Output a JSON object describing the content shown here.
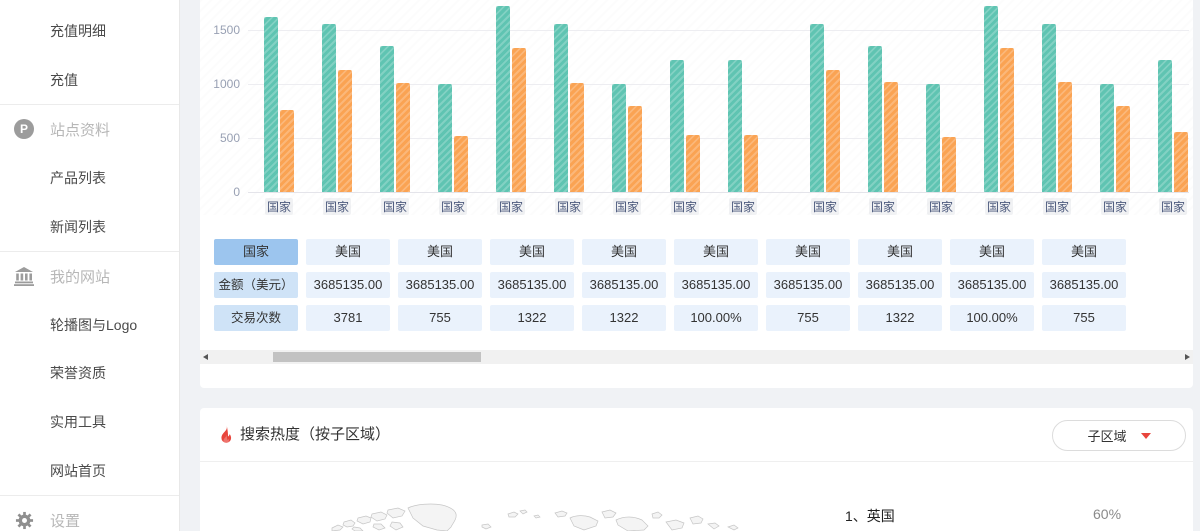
{
  "sidebar": {
    "items": [
      {
        "type": "item",
        "key": "recharge-details",
        "label": "充值明细"
      },
      {
        "type": "item",
        "key": "recharge",
        "label": "充值"
      },
      {
        "type": "divider"
      },
      {
        "type": "section",
        "key": "site-info",
        "icon": "p-circle-icon",
        "label": "站点资料"
      },
      {
        "type": "item",
        "key": "product-list",
        "label": "产品列表"
      },
      {
        "type": "item",
        "key": "news-list",
        "label": "新闻列表"
      },
      {
        "type": "divider"
      },
      {
        "type": "section",
        "key": "my-website",
        "icon": "bank-icon",
        "label": "我的网站"
      },
      {
        "type": "item",
        "key": "banner-logo",
        "label": "轮播图与Logo"
      },
      {
        "type": "item",
        "key": "honor",
        "label": "荣誉资质"
      },
      {
        "type": "item",
        "key": "tools",
        "label": "实用工具"
      },
      {
        "type": "item",
        "key": "homepage",
        "label": "网站首页"
      },
      {
        "type": "divider"
      },
      {
        "type": "section",
        "key": "settings",
        "icon": "gear-icon",
        "label": "设置"
      }
    ]
  },
  "chart_data": {
    "type": "bar",
    "title": "",
    "xlabel": "",
    "ylabel": "",
    "categories": [
      "国家",
      "国家",
      "国家",
      "国家",
      "国家",
      "国家",
      "国家",
      "国家",
      "国家",
      "国家",
      "国家",
      "国家",
      "国家",
      "国家",
      "国家",
      "国家"
    ],
    "series": [
      {
        "name": "series-teal",
        "color": "#5fc4b2",
        "values": [
          1620,
          1560,
          1350,
          1000,
          1720,
          1560,
          1000,
          1220,
          1220,
          1560,
          1350,
          1000,
          1720,
          1560,
          1000,
          1220
        ]
      },
      {
        "name": "series-orange",
        "color": "#faa353",
        "values": [
          760,
          1130,
          1010,
          520,
          1330,
          1010,
          800,
          530,
          530,
          1130,
          1020,
          510,
          1330,
          1020,
          800,
          560
        ]
      }
    ],
    "yticks": [
      0,
      500,
      1000,
      1500
    ],
    "ylim": [
      0,
      1750
    ],
    "grid": true,
    "legend_position": "none"
  },
  "table": {
    "row_headers": [
      "国家",
      "金额（美元）",
      "交易次数"
    ],
    "columns": [
      {
        "country": "美国",
        "amount": "3685135.00",
        "count": "3781"
      },
      {
        "country": "美国",
        "amount": "3685135.00",
        "count": "755"
      },
      {
        "country": "美国",
        "amount": "3685135.00",
        "count": "1322"
      },
      {
        "country": "美国",
        "amount": "3685135.00",
        "count": "1322"
      },
      {
        "country": "美国",
        "amount": "3685135.00",
        "count": "100.00%"
      },
      {
        "country": "美国",
        "amount": "3685135.00",
        "count": "755"
      },
      {
        "country": "美国",
        "amount": "3685135.00",
        "count": "1322"
      },
      {
        "country": "美国",
        "amount": "3685135.00",
        "count": "100.00%"
      },
      {
        "country": "美国",
        "amount": "3685135.00",
        "count": "755"
      }
    ]
  },
  "heat_panel": {
    "title": "搜索热度（按子区域）",
    "dropdown_label": "子区域",
    "ranking": [
      {
        "label": "1、英国",
        "percent": "60%"
      }
    ]
  },
  "colors": {
    "teal_bar": "#5fc4b2",
    "orange_bar": "#faa353",
    "table_header_selected": "#9cc5ee",
    "table_header": "#cfe3f7",
    "table_cell": "#eaf2fc",
    "accent_red": "#e8453c",
    "page_bg": "#f0f2f5"
  }
}
